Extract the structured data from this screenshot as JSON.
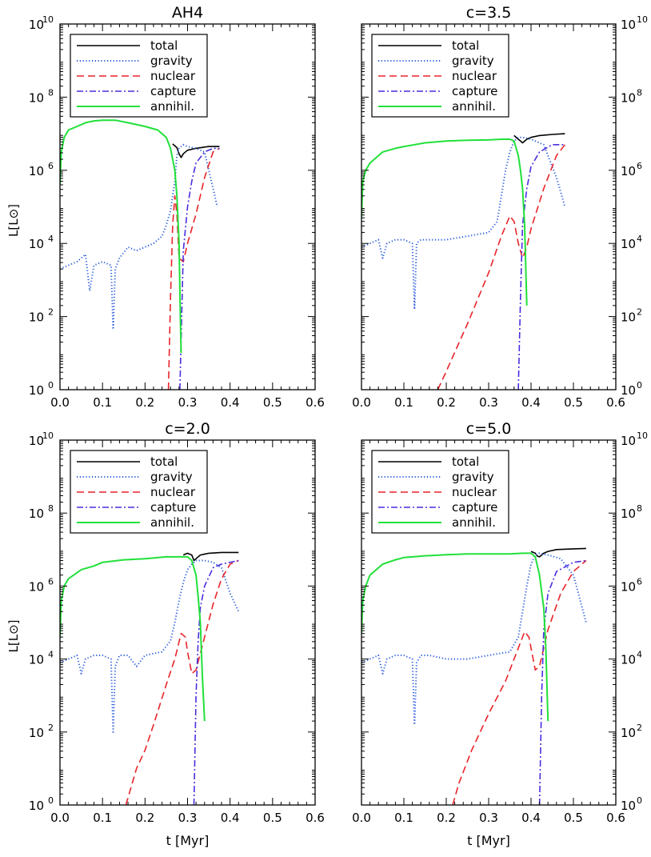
{
  "figure": {
    "ylabel": "L[L⊙]",
    "xlabel": "t [Myr]"
  },
  "chart_data": [
    {
      "type": "line",
      "title": "AH4",
      "xlabel": "",
      "ylabel": "L[L⊙]",
      "xlim": [
        0,
        0.6
      ],
      "ylim_log10": [
        0,
        10
      ],
      "yscale": "log",
      "x_ticks": [
        "0.0",
        "0.1",
        "0.2",
        "0.3",
        "0.4",
        "0.5",
        "0.6"
      ],
      "y_tick_exponents": [
        "0",
        "2",
        "4",
        "6",
        "8",
        "10"
      ],
      "y_tick_base": "10",
      "legend": [
        "total",
        "gravity",
        "nuclear",
        "capture",
        "annihil."
      ],
      "legend_location": "top-left",
      "series": [
        {
          "name": "total",
          "color": "#000000",
          "x": [
            0.265,
            0.275,
            0.28,
            0.285,
            0.29,
            0.3,
            0.32,
            0.35,
            0.375
          ],
          "log10_L": [
            6.72,
            6.62,
            6.45,
            6.35,
            6.45,
            6.55,
            6.6,
            6.65,
            6.65
          ]
        },
        {
          "name": "gravity",
          "color": "#2a5bdc",
          "x": [
            0.0,
            0.02,
            0.04,
            0.06,
            0.07,
            0.08,
            0.1,
            0.12,
            0.125,
            0.13,
            0.14,
            0.16,
            0.18,
            0.2,
            0.22,
            0.24,
            0.25,
            0.26,
            0.27,
            0.275,
            0.28,
            0.29,
            0.3,
            0.32,
            0.34,
            0.36,
            0.37
          ],
          "log10_L": [
            3.3,
            3.4,
            3.5,
            3.7,
            2.7,
            3.4,
            3.5,
            3.4,
            1.65,
            3.3,
            3.6,
            3.9,
            3.8,
            3.9,
            4.0,
            4.2,
            4.5,
            4.9,
            5.7,
            6.4,
            6.6,
            6.7,
            6.65,
            6.6,
            6.5,
            5.5,
            5.0
          ]
        },
        {
          "name": "nuclear",
          "color": "#e8242a",
          "x": [
            0.255,
            0.26,
            0.265,
            0.27,
            0.275,
            0.28,
            0.29,
            0.3,
            0.32,
            0.34,
            0.36,
            0.375
          ],
          "log10_L": [
            0.0,
            2.5,
            4.5,
            5.3,
            4.8,
            3.6,
            3.5,
            4.0,
            4.8,
            5.8,
            6.5,
            6.6
          ]
        },
        {
          "name": "capture",
          "color": "#4a2ee0",
          "x": [
            0.282,
            0.29,
            0.3,
            0.31,
            0.32,
            0.34,
            0.36,
            0.375
          ],
          "log10_L": [
            0.0,
            3.8,
            5.0,
            5.7,
            6.2,
            6.5,
            6.6,
            6.6
          ]
        },
        {
          "name": "annihil.",
          "color": "#22e03a",
          "x": [
            0.0,
            0.003,
            0.01,
            0.02,
            0.04,
            0.06,
            0.08,
            0.1,
            0.13,
            0.16,
            0.2,
            0.23,
            0.25,
            0.26,
            0.27,
            0.275,
            0.28,
            0.283,
            0.285
          ],
          "log10_L": [
            5.6,
            6.5,
            6.9,
            7.1,
            7.2,
            7.3,
            7.35,
            7.37,
            7.37,
            7.3,
            7.2,
            7.1,
            6.9,
            6.6,
            6.0,
            5.3,
            4.0,
            2.0,
            1.0
          ]
        }
      ]
    },
    {
      "type": "line",
      "title": "c=3.5",
      "xlabel": "",
      "ylabel": "",
      "xlim": [
        0,
        0.6
      ],
      "ylim_log10": [
        0,
        10
      ],
      "yscale": "log",
      "x_ticks": [
        "0.0",
        "0.1",
        "0.2",
        "0.3",
        "0.4",
        "0.5",
        "0.6"
      ],
      "y_tick_exponents": [
        "0",
        "2",
        "4",
        "6",
        "8",
        "10"
      ],
      "y_tick_base": "10",
      "legend": [
        "total",
        "gravity",
        "nuclear",
        "capture",
        "annihil."
      ],
      "legend_location": "top-left",
      "series": [
        {
          "name": "total",
          "color": "#000000",
          "x": [
            0.36,
            0.37,
            0.375,
            0.38,
            0.39,
            0.4,
            0.42,
            0.45,
            0.48
          ],
          "log10_L": [
            6.95,
            6.85,
            6.8,
            6.75,
            6.85,
            6.9,
            6.95,
            6.98,
            7.0
          ]
        },
        {
          "name": "gravity",
          "color": "#2a5bdc",
          "x": [
            0.0,
            0.02,
            0.04,
            0.05,
            0.06,
            0.08,
            0.1,
            0.12,
            0.125,
            0.13,
            0.14,
            0.16,
            0.2,
            0.25,
            0.3,
            0.32,
            0.33,
            0.34,
            0.35,
            0.36,
            0.37,
            0.38,
            0.4,
            0.43,
            0.46,
            0.48
          ],
          "log10_L": [
            3.9,
            4.0,
            4.1,
            3.6,
            4.0,
            4.1,
            4.1,
            4.0,
            2.2,
            4.0,
            4.1,
            4.1,
            4.1,
            4.2,
            4.3,
            4.6,
            5.3,
            6.0,
            6.5,
            6.8,
            6.9,
            6.9,
            6.85,
            6.7,
            5.8,
            5.0
          ]
        },
        {
          "name": "nuclear",
          "color": "#e8242a",
          "x": [
            0.18,
            0.2,
            0.25,
            0.3,
            0.33,
            0.35,
            0.36,
            0.37,
            0.38,
            0.39,
            0.4,
            0.43,
            0.46,
            0.48
          ],
          "log10_L": [
            0.0,
            0.5,
            1.8,
            3.2,
            4.2,
            4.75,
            4.6,
            4.0,
            3.6,
            3.9,
            4.4,
            5.5,
            6.4,
            6.7
          ]
        },
        {
          "name": "capture",
          "color": "#4a2ee0",
          "x": [
            0.37,
            0.375,
            0.38,
            0.39,
            0.4,
            0.42,
            0.45,
            0.48
          ],
          "log10_L": [
            0.0,
            2.5,
            4.5,
            5.5,
            6.1,
            6.5,
            6.7,
            6.7
          ]
        },
        {
          "name": "annihil.",
          "color": "#22e03a",
          "x": [
            0.0,
            0.003,
            0.01,
            0.02,
            0.05,
            0.08,
            0.1,
            0.15,
            0.2,
            0.25,
            0.3,
            0.33,
            0.35,
            0.36,
            0.37,
            0.375,
            0.38,
            0.385,
            0.39
          ],
          "log10_L": [
            4.7,
            5.7,
            6.0,
            6.2,
            6.5,
            6.6,
            6.65,
            6.75,
            6.8,
            6.82,
            6.83,
            6.85,
            6.85,
            6.8,
            6.4,
            6.0,
            5.5,
            4.5,
            2.3
          ]
        }
      ]
    },
    {
      "type": "line",
      "title": "c=2.0",
      "xlabel": "t [Myr]",
      "ylabel": "L[L⊙]",
      "xlim": [
        0,
        0.6
      ],
      "ylim_log10": [
        0,
        10
      ],
      "yscale": "log",
      "x_ticks": [
        "0.0",
        "0.1",
        "0.2",
        "0.3",
        "0.4",
        "0.5",
        "0.6"
      ],
      "y_tick_exponents": [
        "0",
        "2",
        "4",
        "6",
        "8",
        "10"
      ],
      "y_tick_base": "10",
      "legend": [
        "total",
        "gravity",
        "nuclear",
        "capture",
        "annihil."
      ],
      "legend_location": "top-left",
      "series": [
        {
          "name": "total",
          "color": "#000000",
          "x": [
            0.29,
            0.3,
            0.31,
            0.315,
            0.32,
            0.33,
            0.35,
            0.38,
            0.42
          ],
          "log10_L": [
            6.85,
            6.9,
            6.85,
            6.7,
            6.75,
            6.85,
            6.9,
            6.92,
            6.92
          ]
        },
        {
          "name": "gravity",
          "color": "#2a5bdc",
          "x": [
            0.0,
            0.02,
            0.04,
            0.05,
            0.06,
            0.08,
            0.1,
            0.12,
            0.125,
            0.13,
            0.14,
            0.16,
            0.18,
            0.2,
            0.24,
            0.26,
            0.27,
            0.28,
            0.29,
            0.3,
            0.31,
            0.32,
            0.34,
            0.36,
            0.38,
            0.4,
            0.42
          ],
          "log10_L": [
            3.9,
            4.0,
            4.1,
            3.6,
            4.0,
            4.1,
            4.1,
            4.0,
            2.0,
            3.8,
            4.1,
            4.1,
            3.8,
            4.1,
            4.2,
            4.5,
            5.0,
            5.6,
            6.1,
            6.45,
            6.6,
            6.7,
            6.7,
            6.65,
            6.5,
            5.8,
            5.3
          ]
        },
        {
          "name": "nuclear",
          "color": "#e8242a",
          "x": [
            0.155,
            0.17,
            0.18,
            0.2,
            0.22,
            0.25,
            0.27,
            0.285,
            0.295,
            0.3,
            0.31,
            0.32,
            0.34,
            0.36,
            0.38,
            0.4,
            0.42
          ],
          "log10_L": [
            0.0,
            0.6,
            1.0,
            1.5,
            2.2,
            3.3,
            4.0,
            4.7,
            4.6,
            4.2,
            3.6,
            3.7,
            4.6,
            5.5,
            6.2,
            6.6,
            6.7
          ]
        },
        {
          "name": "capture",
          "color": "#4a2ee0",
          "x": [
            0.315,
            0.32,
            0.325,
            0.33,
            0.34,
            0.36,
            0.38,
            0.42
          ],
          "log10_L": [
            0.0,
            3.0,
            4.5,
            5.4,
            6.0,
            6.5,
            6.6,
            6.7
          ]
        },
        {
          "name": "annihil.",
          "color": "#22e03a",
          "x": [
            0.0,
            0.003,
            0.01,
            0.02,
            0.05,
            0.08,
            0.1,
            0.15,
            0.2,
            0.25,
            0.28,
            0.3,
            0.31,
            0.32,
            0.325,
            0.33,
            0.335,
            0.34
          ],
          "log10_L": [
            4.6,
            5.6,
            6.0,
            6.2,
            6.45,
            6.55,
            6.65,
            6.72,
            6.75,
            6.8,
            6.8,
            6.8,
            6.7,
            6.3,
            5.7,
            5.0,
            3.5,
            2.3
          ]
        }
      ]
    },
    {
      "type": "line",
      "title": "c=5.0",
      "xlabel": "t [Myr]",
      "ylabel": "",
      "xlim": [
        0,
        0.6
      ],
      "ylim_log10": [
        0,
        10
      ],
      "yscale": "log",
      "x_ticks": [
        "0.0",
        "0.1",
        "0.2",
        "0.3",
        "0.4",
        "0.5",
        "0.6"
      ],
      "y_tick_exponents": [
        "0",
        "2",
        "4",
        "6",
        "8",
        "10"
      ],
      "y_tick_base": "10",
      "legend": [
        "total",
        "gravity",
        "nuclear",
        "capture",
        "annihil."
      ],
      "legend_location": "top-left",
      "series": [
        {
          "name": "total",
          "color": "#000000",
          "x": [
            0.4,
            0.41,
            0.415,
            0.42,
            0.43,
            0.44,
            0.46,
            0.5,
            0.53
          ],
          "log10_L": [
            6.95,
            6.9,
            6.82,
            6.8,
            6.9,
            6.95,
            7.0,
            7.02,
            7.03
          ]
        },
        {
          "name": "gravity",
          "color": "#2a5bdc",
          "x": [
            0.0,
            0.02,
            0.04,
            0.05,
            0.06,
            0.08,
            0.1,
            0.12,
            0.125,
            0.13,
            0.14,
            0.16,
            0.2,
            0.25,
            0.3,
            0.35,
            0.37,
            0.38,
            0.39,
            0.4,
            0.41,
            0.42,
            0.44,
            0.47,
            0.5,
            0.53
          ],
          "log10_L": [
            3.9,
            4.0,
            4.1,
            3.6,
            4.0,
            4.1,
            4.1,
            4.0,
            2.2,
            3.9,
            4.1,
            4.1,
            4.0,
            4.0,
            4.1,
            4.2,
            4.6,
            5.3,
            6.0,
            6.6,
            6.85,
            6.9,
            6.85,
            6.75,
            6.3,
            5.0
          ]
        },
        {
          "name": "nuclear",
          "color": "#e8242a",
          "x": [
            0.215,
            0.23,
            0.26,
            0.3,
            0.34,
            0.37,
            0.385,
            0.395,
            0.4,
            0.41,
            0.42,
            0.44,
            0.47,
            0.5,
            0.53
          ],
          "log10_L": [
            0.0,
            0.6,
            1.5,
            2.5,
            3.4,
            4.3,
            4.75,
            4.6,
            4.3,
            3.7,
            3.8,
            4.8,
            5.8,
            6.4,
            6.7
          ]
        },
        {
          "name": "capture",
          "color": "#4a2ee0",
          "x": [
            0.42,
            0.425,
            0.43,
            0.44,
            0.46,
            0.5,
            0.53
          ],
          "log10_L": [
            0.0,
            3.0,
            4.8,
            5.8,
            6.4,
            6.65,
            6.7
          ]
        },
        {
          "name": "annihil.",
          "color": "#22e03a",
          "x": [
            0.0,
            0.003,
            0.01,
            0.02,
            0.05,
            0.08,
            0.1,
            0.15,
            0.2,
            0.25,
            0.3,
            0.35,
            0.38,
            0.4,
            0.41,
            0.42,
            0.43,
            0.435,
            0.44
          ],
          "log10_L": [
            4.7,
            5.6,
            6.0,
            6.3,
            6.6,
            6.72,
            6.78,
            6.83,
            6.86,
            6.88,
            6.88,
            6.88,
            6.9,
            6.9,
            6.8,
            6.3,
            5.4,
            4.3,
            2.3
          ]
        }
      ]
    }
  ]
}
